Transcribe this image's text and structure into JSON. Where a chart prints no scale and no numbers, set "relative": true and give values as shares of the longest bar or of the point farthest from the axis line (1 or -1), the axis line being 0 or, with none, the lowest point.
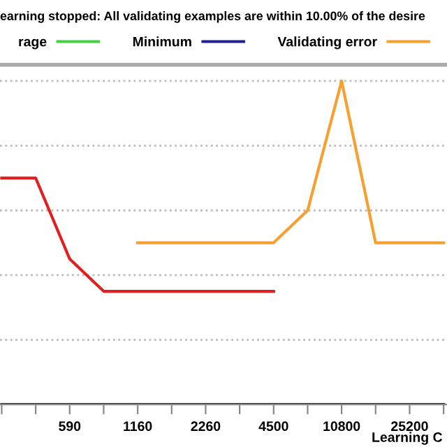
{
  "chart_data": {
    "type": "line",
    "relative": true,
    "title": "earning stopped: All validating examples are within 10.00% of the desire",
    "xlabel": "Learning C",
    "categories": [
      null,
      null,
      "590",
      null,
      "1160",
      null,
      "2260",
      null,
      "4500",
      null,
      "10800",
      null,
      "25200",
      null
    ],
    "series": [
      {
        "name": "rage",
        "color": "#40d040",
        "values": [
          null,
          null,
          null,
          null,
          null,
          null,
          null,
          null,
          null,
          null,
          null,
          null,
          null,
          null
        ]
      },
      {
        "name": "Minimum",
        "color": "#202090",
        "values": [
          0,
          0,
          0,
          0,
          0,
          0,
          0,
          0,
          0,
          0,
          0,
          0,
          0,
          0
        ]
      },
      {
        "name": "Validating error",
        "color": "#f5a030",
        "values": [
          null,
          null,
          null,
          null,
          0.5,
          0.5,
          0.5,
          0.5,
          0.5,
          0.6,
          1,
          0.5,
          0.5,
          0.5
        ]
      },
      {
        "color": "#e02020",
        "values": [
          0.7,
          0.7,
          0.45,
          0.35,
          0.35,
          0.35,
          0.35,
          0.35,
          0.35,
          null,
          null,
          null,
          null,
          null
        ]
      }
    ],
    "grid": "y",
    "legend": "top",
    "line_style": "solid",
    "marker": "none",
    "tick_labels": "x"
  }
}
